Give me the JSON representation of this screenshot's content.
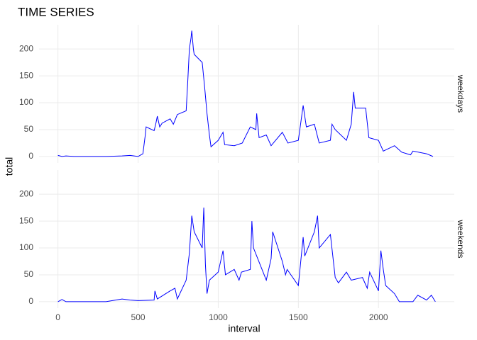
{
  "chart_data": [
    {
      "type": "line",
      "title": "TIME SERIES",
      "y_label": "total",
      "strip": "weekdays",
      "x": [
        0,
        25,
        50,
        100,
        200,
        300,
        400,
        450,
        500,
        530,
        545,
        550,
        600,
        610,
        620,
        635,
        650,
        700,
        720,
        745,
        800,
        810,
        820,
        830,
        835,
        845,
        850,
        900,
        915,
        930,
        945,
        955,
        1000,
        1030,
        1040,
        1100,
        1150,
        1200,
        1235,
        1240,
        1255,
        1300,
        1330,
        1400,
        1435,
        1500,
        1530,
        1550,
        1600,
        1630,
        1700,
        1710,
        1730,
        1800,
        1830,
        1845,
        1855,
        1920,
        1940,
        2000,
        2030,
        2100,
        2145,
        2200,
        2215,
        2300,
        2340
      ],
      "series": [
        {
          "name": "weekdays",
          "color": "#0000ff",
          "values": [
            2,
            0,
            1,
            0,
            0,
            0,
            1,
            2,
            0,
            5,
            40,
            55,
            48,
            60,
            75,
            55,
            62,
            70,
            60,
            78,
            85,
            140,
            200,
            220,
            234,
            200,
            190,
            175,
            130,
            80,
            40,
            18,
            30,
            45,
            22,
            20,
            25,
            55,
            50,
            80,
            35,
            40,
            20,
            45,
            25,
            30,
            95,
            55,
            60,
            25,
            30,
            60,
            50,
            30,
            60,
            120,
            90,
            90,
            35,
            30,
            10,
            20,
            8,
            3,
            10,
            5,
            0
          ]
        }
      ],
      "xlim": [
        -118,
        2473
      ],
      "ylim": [
        -12,
        245
      ],
      "yticks": [
        0,
        50,
        100,
        150,
        200
      ],
      "grid": true
    },
    {
      "type": "line",
      "x_label": "interval",
      "strip": "weekends",
      "x": [
        0,
        25,
        50,
        200,
        300,
        400,
        450,
        500,
        600,
        605,
        620,
        700,
        730,
        745,
        800,
        820,
        835,
        850,
        900,
        910,
        920,
        930,
        945,
        1000,
        1030,
        1045,
        1100,
        1130,
        1145,
        1200,
        1210,
        1220,
        1300,
        1330,
        1340,
        1400,
        1420,
        1430,
        1500,
        1530,
        1540,
        1600,
        1620,
        1630,
        1700,
        1730,
        1750,
        1800,
        1830,
        1900,
        1930,
        1945,
        2000,
        2015,
        2030,
        2045,
        2100,
        2130,
        2200,
        2215,
        2245,
        2300,
        2330,
        2355
      ],
      "series": [
        {
          "name": "weekends",
          "color": "#0000ff",
          "values": [
            0,
            4,
            0,
            0,
            0,
            5,
            3,
            2,
            3,
            20,
            5,
            20,
            25,
            5,
            40,
            90,
            160,
            130,
            100,
            175,
            70,
            15,
            40,
            55,
            95,
            50,
            60,
            40,
            55,
            60,
            150,
            100,
            40,
            80,
            130,
            75,
            50,
            60,
            30,
            120,
            85,
            130,
            160,
            100,
            125,
            45,
            35,
            55,
            40,
            45,
            25,
            55,
            20,
            95,
            60,
            30,
            15,
            0,
            0,
            0,
            12,
            3,
            12,
            0
          ]
        }
      ],
      "xlim": [
        -118,
        2473
      ],
      "ylim": [
        -12,
        245
      ],
      "xticks": [
        0,
        500,
        1000,
        1500,
        2000
      ],
      "yticks": [
        0,
        50,
        100,
        150,
        200
      ],
      "grid": true
    }
  ]
}
